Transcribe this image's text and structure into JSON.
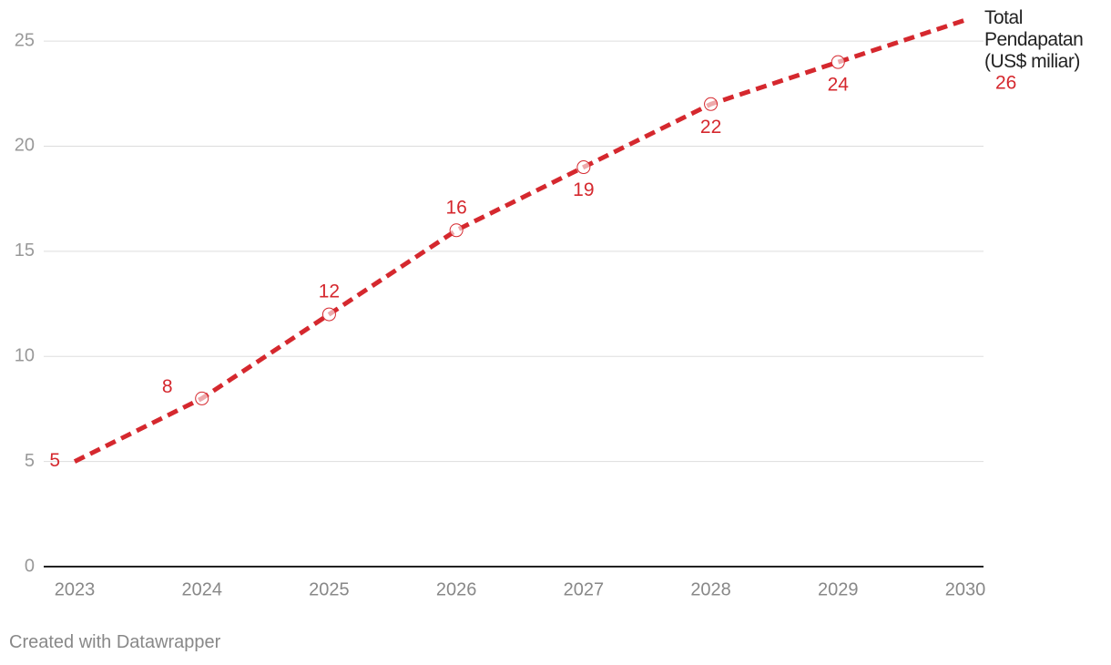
{
  "chart_data": {
    "type": "line",
    "x": [
      2023,
      2024,
      2025,
      2026,
      2027,
      2028,
      2029,
      2030
    ],
    "xlim": [
      2023,
      2030
    ],
    "xticks": [
      2023,
      2024,
      2025,
      2026,
      2027,
      2028,
      2029,
      2030
    ],
    "ylim": [
      0,
      26
    ],
    "yticks": [
      0,
      5,
      10,
      15,
      20,
      25
    ],
    "grid": true,
    "series": [
      {
        "name": "Total Pendapatan (US$ miliar)",
        "color": "#d5282e",
        "values": [
          5,
          8,
          12,
          16,
          19,
          22,
          24,
          26
        ]
      }
    ],
    "footer": "Created with Datawrapper"
  }
}
